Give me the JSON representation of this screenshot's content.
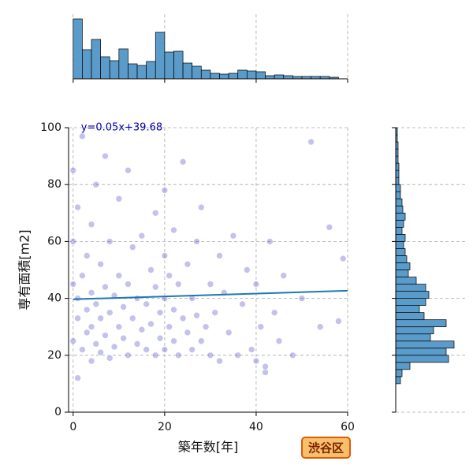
{
  "chart_data": [
    {
      "type": "scatter",
      "xlabel": "築年数[年]",
      "ylabel": "専有面積[m2]",
      "xlim": [
        -1,
        60
      ],
      "ylim": [
        0,
        100
      ],
      "xticks": [
        0,
        20,
        40,
        60
      ],
      "yticks": [
        0,
        20,
        40,
        60,
        80,
        100
      ],
      "grid": true,
      "color": "#2323c0",
      "x": [
        0,
        0,
        0,
        0,
        1,
        1,
        1,
        1,
        2,
        2,
        2,
        3,
        3,
        3,
        4,
        4,
        4,
        4,
        5,
        5,
        5,
        6,
        6,
        6,
        7,
        7,
        7,
        8,
        8,
        8,
        9,
        9,
        10,
        10,
        10,
        11,
        11,
        12,
        12,
        12,
        13,
        13,
        14,
        14,
        15,
        15,
        16,
        16,
        17,
        17,
        18,
        18,
        18,
        19,
        19,
        20,
        20,
        20,
        20,
        21,
        21,
        22,
        22,
        22,
        23,
        23,
        24,
        24,
        25,
        25,
        26,
        26,
        27,
        27,
        28,
        28,
        29,
        30,
        30,
        31,
        32,
        32,
        33,
        34,
        35,
        36,
        37,
        38,
        39,
        40,
        40,
        41,
        42,
        42,
        43,
        44,
        45,
        46,
        48,
        50,
        52,
        54,
        56,
        58,
        59
      ],
      "y": [
        25,
        45,
        60,
        85,
        12,
        33,
        40,
        72,
        22,
        48,
        97,
        28,
        36,
        55,
        18,
        30,
        42,
        66,
        24,
        38,
        80,
        21,
        33,
        52,
        27,
        44,
        90,
        19,
        35,
        60,
        23,
        41,
        30,
        48,
        75,
        26,
        37,
        20,
        45,
        85,
        33,
        58,
        24,
        40,
        29,
        62,
        22,
        38,
        31,
        50,
        20,
        44,
        70,
        26,
        35,
        22,
        40,
        55,
        78,
        30,
        48,
        25,
        36,
        64,
        20,
        45,
        33,
        88,
        28,
        52,
        22,
        40,
        34,
        60,
        25,
        72,
        30,
        20,
        45,
        35,
        18,
        55,
        42,
        28,
        62,
        20,
        38,
        50,
        22,
        18,
        45,
        30,
        14,
        16,
        60,
        35,
        25,
        48,
        20,
        40,
        95,
        30,
        65,
        32,
        54
      ],
      "regression": {
        "slope": 0.05,
        "intercept": 39.68,
        "label": "y=0.05x+39.68",
        "color": "#1f77b4"
      }
    },
    {
      "type": "histogram",
      "orientation": "vertical",
      "color": "#5a9bc9",
      "bins": [
        0,
        2,
        4,
        6,
        8,
        10,
        12,
        14,
        16,
        18,
        20,
        22,
        24,
        26,
        28,
        30,
        32,
        34,
        36,
        38,
        40,
        42,
        44,
        46,
        48,
        50,
        52,
        54,
        56,
        58
      ],
      "counts": [
        76,
        37,
        50,
        28,
        23,
        38,
        19,
        17,
        22,
        59,
        34,
        35,
        20,
        16,
        11,
        7,
        6,
        7,
        11,
        10,
        9,
        4,
        5,
        4,
        3,
        3,
        3,
        3,
        2
      ],
      "xlim": [
        -1,
        60
      ],
      "ylim": [
        0,
        76
      ],
      "xticks": [
        0,
        20,
        40,
        60
      ],
      "grid": true
    },
    {
      "type": "histogram",
      "orientation": "horizontal",
      "color": "#5a9bc9",
      "bins": [
        10,
        12.5,
        15,
        17.5,
        20,
        22.5,
        25,
        27.5,
        30,
        32.5,
        35,
        37.5,
        40,
        42.5,
        45,
        47.5,
        50,
        52.5,
        55,
        57.5,
        60,
        62.5,
        65,
        67.5,
        70,
        72.5,
        75,
        77.5,
        80,
        82.5,
        85,
        87.5,
        90,
        92.5,
        95,
        97.5,
        100
      ],
      "counts": [
        6,
        8,
        18,
        67,
        64,
        74,
        44,
        48,
        64,
        36,
        30,
        38,
        42,
        38,
        26,
        16,
        18,
        14,
        12,
        10,
        12,
        8,
        10,
        12,
        9,
        8,
        6,
        6,
        4,
        4,
        4,
        3,
        3,
        3,
        2,
        2
      ],
      "ylim": [
        0,
        100
      ],
      "xlim": [
        0,
        80
      ],
      "yticks": [
        0,
        20,
        40,
        60,
        80,
        100
      ],
      "grid": true
    }
  ],
  "badge": "渋谷区"
}
